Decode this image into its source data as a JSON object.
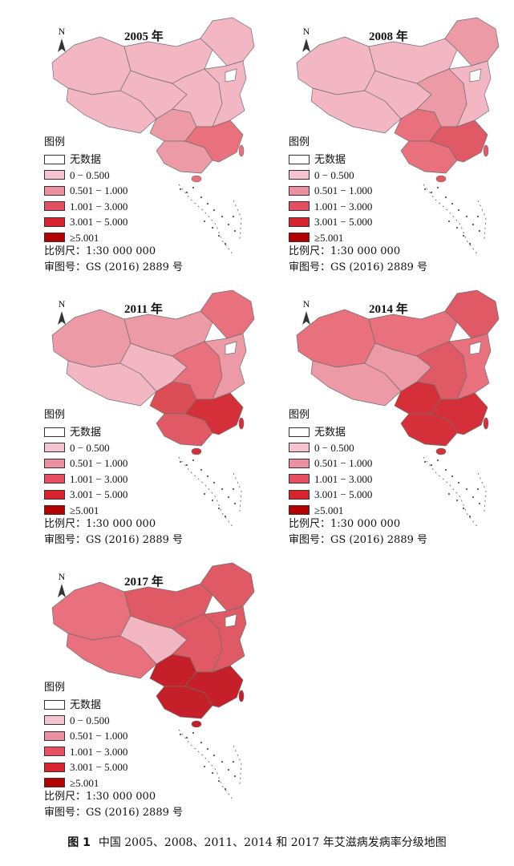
{
  "maps": [
    {
      "year_label": "2005 年",
      "fills": [
        "#f3b7c4",
        "#f3b7c4",
        "#ec9aa6",
        "#f3b7c4",
        "#f3b7c4",
        "#f3b7c4",
        "#ec9aa6",
        "#f3b7c4",
        "#e9717e",
        "#f3b7c4"
      ]
    },
    {
      "year_label": "2008 年",
      "fills": [
        "#f3b7c4",
        "#f3b7c4",
        "#e9717e",
        "#f3b7c4",
        "#f3b7c4",
        "#ec9aa6",
        "#e9717e",
        "#ec9aa6",
        "#e05a65",
        "#f3b7c4"
      ]
    },
    {
      "year_label": "2011 年",
      "fills": [
        "#ec9aa6",
        "#f3b7c4",
        "#dc4e56",
        "#f3b7c4",
        "#ec9aa6",
        "#e9717e",
        "#e05a65",
        "#e9717e",
        "#d5303a",
        "#ec9aa6"
      ]
    },
    {
      "year_label": "2014 年",
      "fills": [
        "#e9717e",
        "#ec9aa6",
        "#d5303a",
        "#ec9aa6",
        "#e9717e",
        "#e05a65",
        "#d5303a",
        "#e05a65",
        "#d5303a",
        "#e9717e"
      ]
    },
    {
      "year_label": "2017 年",
      "fills": [
        "#e9717e",
        "#e9717e",
        "#c5202a",
        "#f3b7c4",
        "#e05a65",
        "#e05a65",
        "#c5202a",
        "#e05a65",
        "#c5202a",
        "#e05a65"
      ]
    }
  ],
  "north_label": "N",
  "legend": {
    "title": "图例",
    "items": [
      {
        "label": "无数据",
        "color": "#ffffff"
      },
      {
        "label": "0 − 0.500",
        "color": "#f6c3d0"
      },
      {
        "label": "0.501 − 1.000",
        "color": "#ec8fa0"
      },
      {
        "label": "1.001 − 3.000",
        "color": "#e55062"
      },
      {
        "label": "3.001 − 5.000",
        "color": "#d7242e"
      },
      {
        "label": "≥5.001",
        "color": "#b40000"
      }
    ]
  },
  "scale_text": "比例尺：1:30 000 000",
  "review_text": "审图号：GS (2016) 2889 号",
  "caption": {
    "label": "图 1",
    "text": "中国 2005、2008、2011、2014 和 2017 年艾滋病发病率分级地图"
  }
}
